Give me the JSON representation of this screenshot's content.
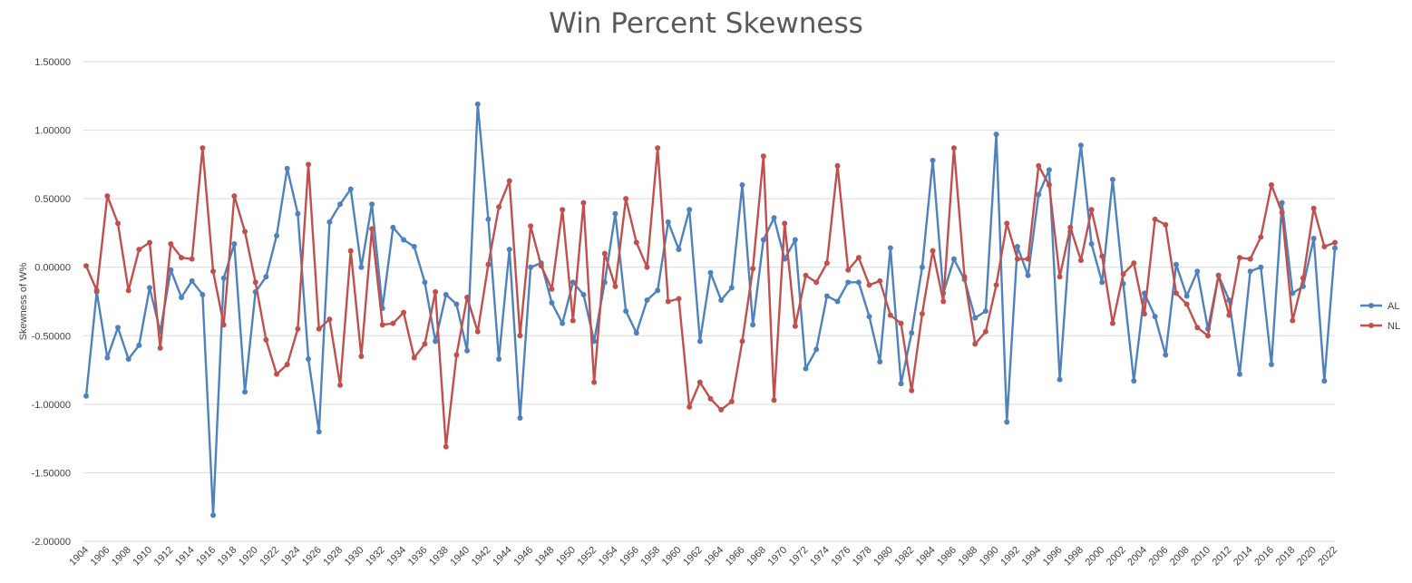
{
  "chart_data": {
    "type": "line",
    "title": "Win Percent Skewness",
    "xlabel": "",
    "ylabel": "Skewness of W%",
    "ylim": [
      -2.0,
      1.5
    ],
    "y_ticks": [
      "1.50000",
      "1.00000",
      "0.50000",
      "0.00000",
      "-0.50000",
      "-1.00000",
      "-1.50000",
      "-2.00000"
    ],
    "grid": true,
    "legend": "right",
    "x": [
      1904,
      1905,
      1906,
      1907,
      1908,
      1909,
      1910,
      1911,
      1912,
      1913,
      1914,
      1915,
      1916,
      1917,
      1918,
      1919,
      1920,
      1921,
      1922,
      1923,
      1924,
      1925,
      1926,
      1927,
      1928,
      1929,
      1930,
      1931,
      1932,
      1933,
      1934,
      1935,
      1936,
      1937,
      1938,
      1939,
      1940,
      1941,
      1942,
      1943,
      1944,
      1945,
      1946,
      1947,
      1948,
      1949,
      1950,
      1951,
      1952,
      1953,
      1954,
      1955,
      1956,
      1957,
      1958,
      1959,
      1960,
      1961,
      1962,
      1963,
      1964,
      1965,
      1966,
      1967,
      1968,
      1969,
      1970,
      1971,
      1972,
      1973,
      1974,
      1975,
      1976,
      1977,
      1978,
      1979,
      1980,
      1981,
      1982,
      1983,
      1984,
      1985,
      1986,
      1987,
      1988,
      1989,
      1990,
      1991,
      1992,
      1993,
      1994,
      1995,
      1996,
      1997,
      1998,
      1999,
      2000,
      2001,
      2002,
      2003,
      2004,
      2005,
      2006,
      2007,
      2008,
      2009,
      2010,
      2011,
      2012,
      2013,
      2014,
      2015,
      2016,
      2017,
      2018,
      2019,
      2020,
      2021,
      2022
    ],
    "x_tick_labels": [
      "1904",
      "1906",
      "1908",
      "1910",
      "1912",
      "1914",
      "1916",
      "1918",
      "1920",
      "1922",
      "1924",
      "1926",
      "1928",
      "1930",
      "1932",
      "1934",
      "1936",
      "1938",
      "1940",
      "1942",
      "1944",
      "1946",
      "1948",
      "1950",
      "1952",
      "1954",
      "1956",
      "1958",
      "1960",
      "1962",
      "1964",
      "1966",
      "1968",
      "1970",
      "1972",
      "1974",
      "1976",
      "1978",
      "1980",
      "1982",
      "1984",
      "1986",
      "1988",
      "1990",
      "1992",
      "1994",
      "1996",
      "1998",
      "2000",
      "2002",
      "2004",
      "2006",
      "2008",
      "2010",
      "2012",
      "2014",
      "2016",
      "2018",
      "2020",
      "2022"
    ],
    "series": [
      {
        "name": "AL",
        "color": "#4f81bd",
        "values": [
          -0.94,
          -0.18,
          -0.66,
          -0.44,
          -0.67,
          -0.57,
          -0.15,
          -0.47,
          -0.02,
          -0.22,
          -0.1,
          -0.2,
          -1.81,
          -0.08,
          0.17,
          -0.91,
          -0.18,
          -0.07,
          0.23,
          0.72,
          0.39,
          -0.67,
          -1.2,
          0.33,
          0.46,
          0.57,
          0.0,
          0.46,
          -0.3,
          0.29,
          0.2,
          0.15,
          -0.11,
          -0.54,
          -0.2,
          -0.27,
          -0.61,
          1.19,
          0.35,
          -0.67,
          0.13,
          -1.1,
          0.0,
          0.03,
          -0.26,
          -0.41,
          -0.11,
          -0.2,
          -0.54,
          -0.11,
          0.39,
          -0.32,
          -0.48,
          -0.24,
          -0.17,
          0.33,
          0.13,
          0.42,
          -0.54,
          -0.04,
          -0.24,
          -0.15,
          0.6,
          -0.42,
          0.2,
          0.36,
          0.06,
          0.2,
          -0.74,
          -0.6,
          -0.21,
          -0.25,
          -0.11,
          -0.11,
          -0.36,
          -0.69,
          0.14,
          -0.85,
          -0.48,
          0.0,
          0.78,
          -0.19,
          0.06,
          -0.09,
          -0.37,
          -0.32,
          0.97,
          -1.13,
          0.15,
          -0.06,
          0.53,
          0.71,
          -0.82,
          0.26,
          0.89,
          0.17,
          -0.11,
          0.64,
          -0.12,
          -0.83,
          -0.19,
          -0.36,
          -0.64,
          0.02,
          -0.21,
          -0.03,
          -0.45,
          -0.06,
          -0.24,
          -0.78,
          -0.03,
          0.0,
          -0.71,
          0.47,
          -0.19,
          -0.14,
          0.21,
          -0.83,
          0.14
        ]
      },
      {
        "name": "NL",
        "color": "#c0504d",
        "values": [
          0.01,
          -0.17,
          0.52,
          0.32,
          -0.17,
          0.13,
          0.18,
          -0.59,
          0.17,
          0.07,
          0.06,
          0.87,
          -0.03,
          -0.42,
          0.52,
          0.26,
          -0.11,
          -0.53,
          -0.78,
          -0.71,
          -0.45,
          0.75,
          -0.45,
          -0.38,
          -0.86,
          0.12,
          -0.65,
          0.28,
          -0.42,
          -0.41,
          -0.33,
          -0.66,
          -0.56,
          -0.18,
          -1.31,
          -0.64,
          -0.22,
          -0.47,
          0.02,
          0.44,
          0.63,
          -0.5,
          0.3,
          0.01,
          -0.16,
          0.42,
          -0.39,
          0.47,
          -0.84,
          0.1,
          -0.14,
          0.5,
          0.18,
          0.0,
          0.87,
          -0.25,
          -0.23,
          -1.02,
          -0.84,
          -0.96,
          -1.04,
          -0.98,
          -0.54,
          -0.01,
          0.81,
          -0.97,
          0.32,
          -0.43,
          -0.06,
          -0.11,
          0.03,
          0.74,
          -0.02,
          0.07,
          -0.13,
          -0.1,
          -0.35,
          -0.41,
          -0.9,
          -0.34,
          0.12,
          -0.25,
          0.87,
          -0.07,
          -0.56,
          -0.47,
          -0.13,
          0.32,
          0.06,
          0.06,
          0.74,
          0.6,
          -0.07,
          0.29,
          0.05,
          0.42,
          0.08,
          -0.41,
          -0.05,
          0.03,
          -0.34,
          0.35,
          0.31,
          -0.19,
          -0.27,
          -0.44,
          -0.5,
          -0.06,
          -0.35,
          0.07,
          0.06,
          0.22,
          0.6,
          0.4,
          -0.39,
          -0.08,
          0.43,
          0.15,
          0.18
        ]
      }
    ]
  }
}
